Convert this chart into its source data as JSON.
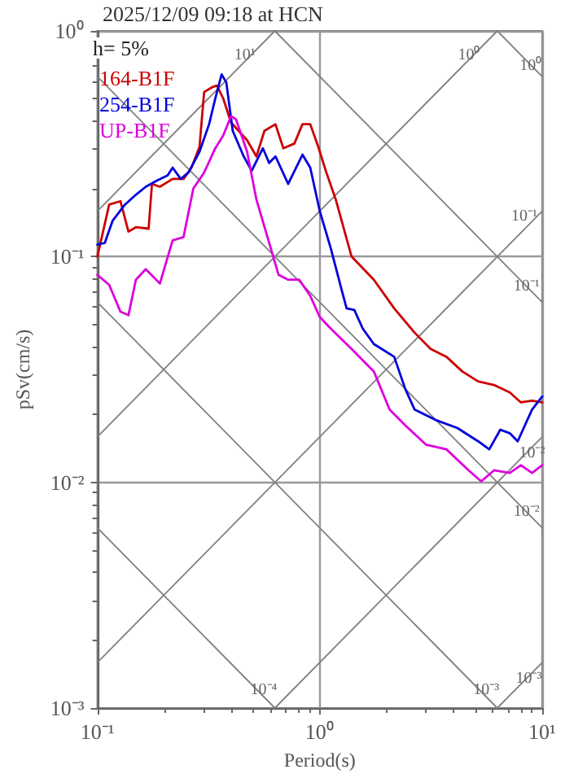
{
  "chart_data": {
    "type": "line",
    "title": "2025/12/09 09:18 at HCN",
    "xlabel": "Period(s)",
    "ylabel": "pSv(cm/s)",
    "log": "xy",
    "xlim": [
      0.1,
      10
    ],
    "ylim": [
      0.001,
      1
    ],
    "xticks": [
      {
        "value": 0.1,
        "label": "10⁻¹"
      },
      {
        "value": 1,
        "label": "10⁰"
      },
      {
        "value": 10,
        "label": "10¹"
      }
    ],
    "yticks": [
      {
        "value": 0.001,
        "label": "10⁻³"
      },
      {
        "value": 0.01,
        "label": "10⁻²"
      },
      {
        "value": 0.1,
        "label": "10⁻¹"
      },
      {
        "value": 1,
        "label": "10⁰"
      }
    ],
    "grid": true,
    "legend": "top left",
    "marker": "none",
    "line_style": "solid",
    "annotations": [
      "h= 5%",
      {
        "text": "10¹",
        "x": 0.46,
        "y": 0.78
      },
      {
        "text": "10⁰",
        "x": 4.7,
        "y": 0.78
      },
      {
        "text": "10⁰",
        "x": 8.9,
        "y": 0.7
      },
      {
        "text": "10⁻¹",
        "x": 8.3,
        "y": 0.15
      },
      {
        "text": "10⁻¹",
        "x": 8.5,
        "y": 0.074
      },
      {
        "text": "10⁻²",
        "x": 9.0,
        "y": 0.0135
      },
      {
        "text": "10⁻²",
        "x": 8.5,
        "y": 0.0074
      },
      {
        "text": "10⁻⁴",
        "x": 0.56,
        "y": 0.0012
      },
      {
        "text": "10⁻³",
        "x": 5.6,
        "y": 0.0012
      },
      {
        "text": "10⁻³",
        "x": 8.7,
        "y": 0.00135
      }
    ],
    "series": [
      {
        "name": "164-B1F",
        "color": "#cc0000",
        "x": [
          0.1,
          0.113,
          0.127,
          0.138,
          0.149,
          0.17,
          0.176,
          0.191,
          0.218,
          0.244,
          0.265,
          0.288,
          0.302,
          0.328,
          0.345,
          0.368,
          0.399,
          0.471,
          0.519,
          0.564,
          0.632,
          0.686,
          0.769,
          0.836,
          0.906,
          0.984,
          1.07,
          1.18,
          1.39,
          1.75,
          2.16,
          2.67,
          3.15,
          3.71,
          4.37,
          5.15,
          6.07,
          7.15,
          8.02,
          9.0,
          10
        ],
        "values": [
          0.1,
          0.17,
          0.176,
          0.129,
          0.135,
          0.133,
          0.21,
          0.204,
          0.221,
          0.221,
          0.248,
          0.307,
          0.536,
          0.563,
          0.573,
          0.502,
          0.393,
          0.328,
          0.278,
          0.361,
          0.386,
          0.302,
          0.317,
          0.386,
          0.386,
          0.307,
          0.236,
          0.179,
          0.1,
          0.079,
          0.059,
          0.046,
          0.039,
          0.036,
          0.031,
          0.028,
          0.027,
          0.025,
          0.0226,
          0.023,
          0.0226
        ]
      },
      {
        "name": "254-B1F",
        "color": "#0000dd",
        "x": [
          0.1,
          0.108,
          0.117,
          0.133,
          0.149,
          0.165,
          0.185,
          0.207,
          0.218,
          0.237,
          0.257,
          0.288,
          0.318,
          0.339,
          0.362,
          0.38,
          0.406,
          0.455,
          0.494,
          0.555,
          0.592,
          0.632,
          0.721,
          0.836,
          0.906,
          1,
          1.12,
          1.26,
          1.32,
          1.43,
          1.56,
          1.75,
          2.16,
          2.42,
          2.67,
          3.36,
          4.16,
          5.15,
          5.78,
          6.48,
          7.15,
          7.76,
          9.0,
          10
        ],
        "values": [
          0.113,
          0.115,
          0.144,
          0.17,
          0.188,
          0.204,
          0.217,
          0.229,
          0.248,
          0.221,
          0.236,
          0.292,
          0.386,
          0.502,
          0.642,
          0.591,
          0.361,
          0.278,
          0.24,
          0.302,
          0.26,
          0.278,
          0.21,
          0.283,
          0.248,
          0.159,
          0.109,
          0.07,
          0.059,
          0.058,
          0.048,
          0.041,
          0.036,
          0.026,
          0.021,
          0.0188,
          0.0174,
          0.0152,
          0.014,
          0.0171,
          0.0165,
          0.0152,
          0.021,
          0.024
        ]
      },
      {
        "name": "UP-B1F",
        "color": "#dd00dd",
        "x": [
          0.1,
          0.113,
          0.127,
          0.138,
          0.149,
          0.165,
          0.191,
          0.218,
          0.244,
          0.27,
          0.302,
          0.339,
          0.368,
          0.399,
          0.42,
          0.471,
          0.519,
          0.582,
          0.653,
          0.721,
          0.808,
          0.906,
          1,
          1.12,
          1.39,
          1.75,
          2.06,
          2.42,
          3.0,
          3.71,
          4.67,
          5.32,
          6.07,
          7.15,
          8.02,
          9.0,
          10
        ],
        "values": [
          0.083,
          0.075,
          0.057,
          0.055,
          0.079,
          0.088,
          0.076,
          0.118,
          0.122,
          0.2,
          0.236,
          0.302,
          0.344,
          0.419,
          0.406,
          0.292,
          0.179,
          0.122,
          0.083,
          0.079,
          0.079,
          0.067,
          0.054,
          0.048,
          0.039,
          0.031,
          0.021,
          0.0179,
          0.0147,
          0.014,
          0.0113,
          0.0101,
          0.0113,
          0.011,
          0.0119,
          0.011,
          0.0119
        ]
      },
      {
        "type": "line",
        "color": "#808080",
        "x": [
          0.1,
          0.628
        ],
        "values": [
          0.159,
          1
        ]
      },
      {
        "type": "line",
        "color": "#808080",
        "x": [
          0.1,
          6.28
        ],
        "values": [
          0.0159,
          1
        ]
      },
      {
        "type": "line",
        "color": "#808080",
        "x": [
          0.1,
          10
        ],
        "values": [
          0.00159,
          0.159
        ]
      },
      {
        "type": "line",
        "color": "#808080",
        "x": [
          0.628,
          10
        ],
        "values": [
          0.001,
          0.0159
        ]
      },
      {
        "type": "line",
        "color": "#808080",
        "x": [
          6.28,
          10
        ],
        "values": [
          0.001,
          0.00159
        ]
      },
      {
        "type": "line",
        "color": "#808080",
        "x": [
          6.28,
          10
        ],
        "values": [
          1,
          0.628
        ]
      },
      {
        "type": "line",
        "color": "#808080",
        "x": [
          0.628,
          10
        ],
        "values": [
          1,
          0.0628
        ]
      },
      {
        "type": "line",
        "color": "#808080",
        "x": [
          0.1,
          10
        ],
        "values": [
          0.628,
          0.00628
        ]
      },
      {
        "type": "line",
        "color": "#808080",
        "x": [
          0.1,
          6.28
        ],
        "values": [
          0.0628,
          0.001
        ]
      },
      {
        "type": "line",
        "color": "#808080",
        "x": [
          0.1,
          0.628
        ],
        "values": [
          0.00628,
          0.001
        ]
      }
    ]
  }
}
